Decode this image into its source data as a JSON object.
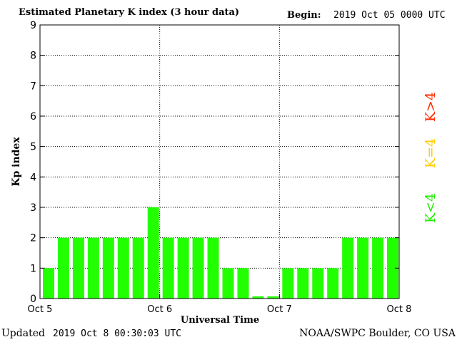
{
  "header": {
    "title": "Estimated Planetary K index (3 hour data)",
    "begin_label": "Begin:",
    "begin_value": "2019 Oct 05 0000 UTC"
  },
  "footer": {
    "updated_label": "Updated",
    "updated_value": "2019 Oct  8 00:30:03 UTC",
    "credit": "NOAA/SWPC Boulder, CO USA"
  },
  "legend": [
    {
      "label": "K>4",
      "color": "#ff2a00"
    },
    {
      "label": "K=4",
      "color": "#ffcc00"
    },
    {
      "label": "K<4",
      "color": "#22ee00"
    }
  ],
  "chart_data": {
    "type": "bar",
    "title": "Estimated Planetary K index (3 hour data)",
    "xlabel": "Universal Time",
    "ylabel": "Kp index",
    "ylim": [
      0,
      9
    ],
    "yticks": [
      0,
      1,
      2,
      3,
      4,
      5,
      6,
      7,
      8,
      9
    ],
    "xticks": [
      "Oct 5",
      "Oct 6",
      "Oct 7",
      "Oct 8"
    ],
    "grid": true,
    "bar_color": "#22ff00",
    "values": [
      1,
      2,
      2,
      2,
      2,
      2,
      2,
      3,
      2,
      2,
      2,
      2,
      1,
      1,
      0,
      0,
      1,
      1,
      1,
      1,
      2,
      2,
      2,
      2
    ]
  }
}
